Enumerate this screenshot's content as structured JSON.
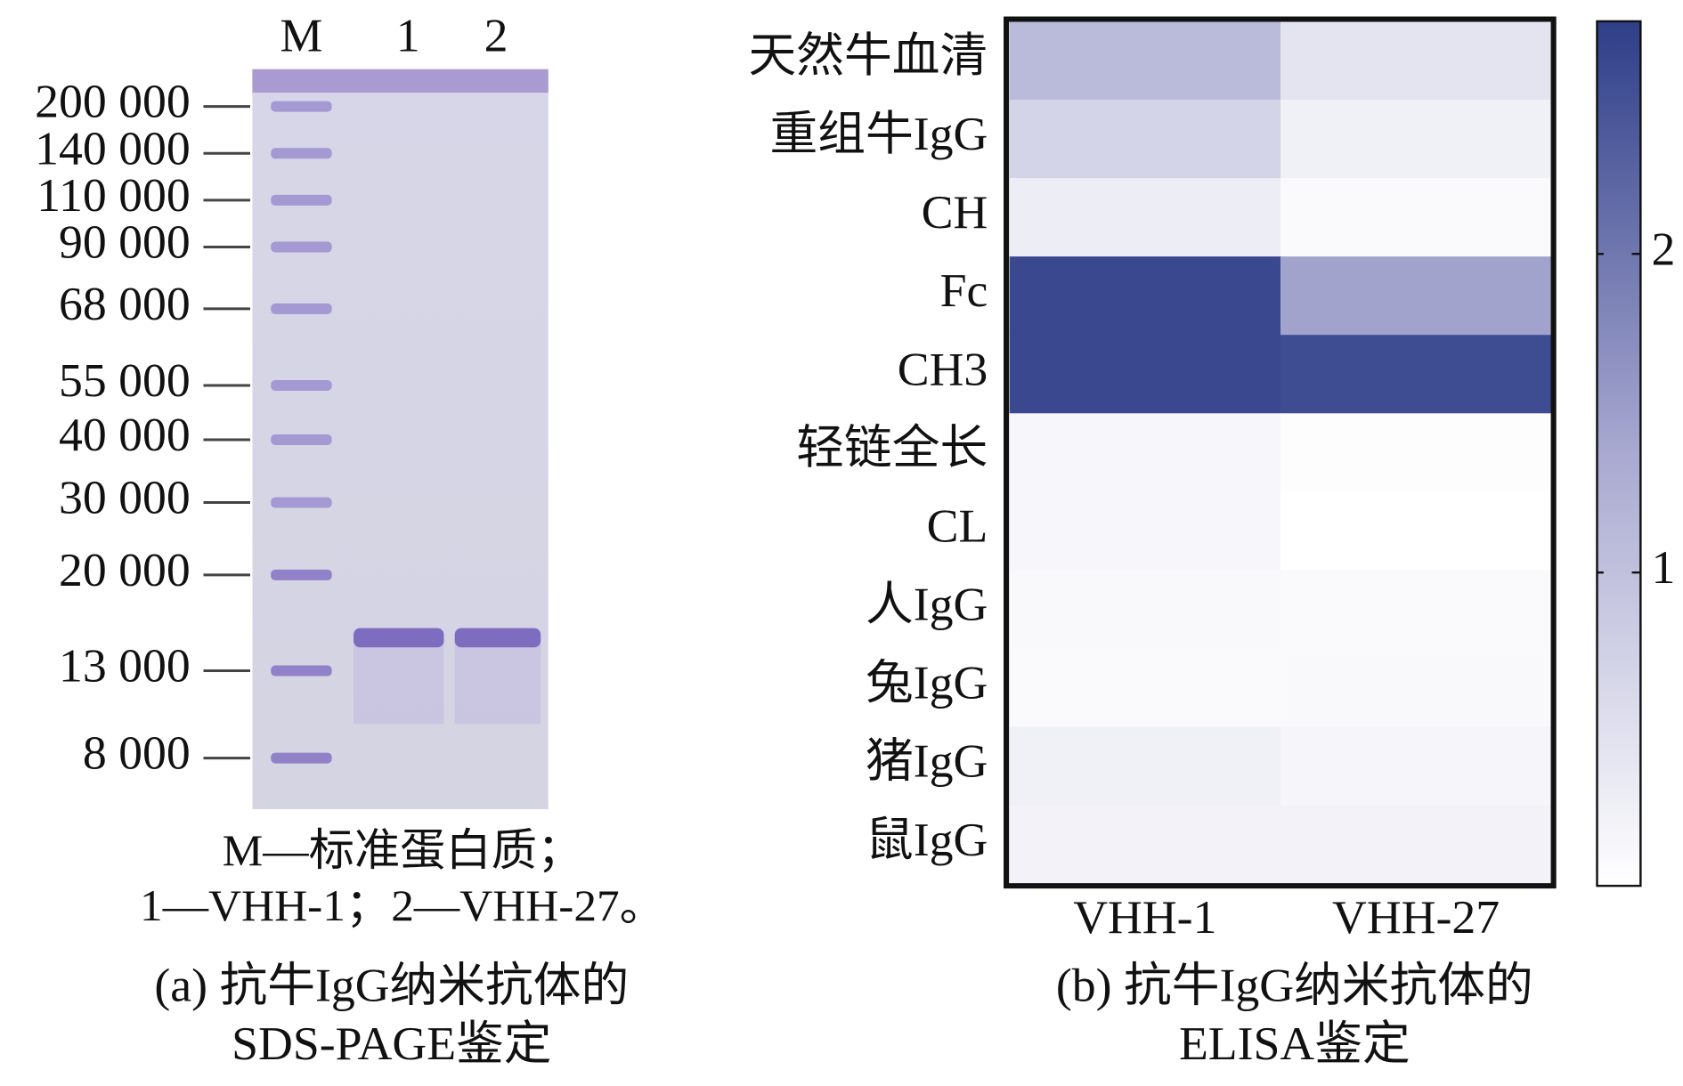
{
  "gel": {
    "lanes": [
      "M",
      "1",
      "2"
    ],
    "markers": [
      {
        "value": 200000,
        "label": "200 000"
      },
      {
        "value": 140000,
        "label": "140 000"
      },
      {
        "value": 110000,
        "label": "110 000"
      },
      {
        "value": 90000,
        "label": "90 000"
      },
      {
        "value": 68000,
        "label": "68 000"
      },
      {
        "value": 55000,
        "label": "55 000"
      },
      {
        "value": 40000,
        "label": "40 000"
      },
      {
        "value": 30000,
        "label": "30 000"
      },
      {
        "value": 20000,
        "label": "20 000"
      },
      {
        "value": 13000,
        "label": "13 000"
      },
      {
        "value": 8000,
        "label": "8 000"
      }
    ],
    "legend": [
      "M—标准蛋白质；",
      "1—VHH-1；2—VHH-27。"
    ],
    "caption": [
      "(a) 抗牛IgG纳米抗体的",
      "SDS-PAGE鉴定"
    ]
  },
  "chart_data": {
    "type": "heatmap",
    "categories": [
      "天然牛血清",
      "重组牛IgG",
      "CH",
      "Fc",
      "CH3",
      "轻链全长",
      "CL",
      "人IgG",
      "兔IgG",
      "猪IgG",
      "鼠IgG"
    ],
    "x": [
      "VHH-1",
      "VHH-27"
    ],
    "values": [
      [
        1.1,
        0.45
      ],
      [
        0.7,
        0.25
      ],
      [
        0.3,
        0.1
      ],
      [
        2.6,
        1.45
      ],
      [
        2.6,
        2.55
      ],
      [
        0.15,
        0.05
      ],
      [
        0.15,
        0.02
      ],
      [
        0.12,
        0.1
      ],
      [
        0.1,
        0.12
      ],
      [
        0.25,
        0.18
      ],
      [
        0.22,
        0.22
      ]
    ],
    "zlim": [
      0.02,
      2.73
    ],
    "zticks": [
      1,
      2
    ],
    "colormap": [
      "#ffffff",
      "#a9a9d1",
      "#2e3e88"
    ],
    "caption": [
      "(b) 抗牛IgG纳米抗体的",
      "ELISA鉴定"
    ]
  }
}
